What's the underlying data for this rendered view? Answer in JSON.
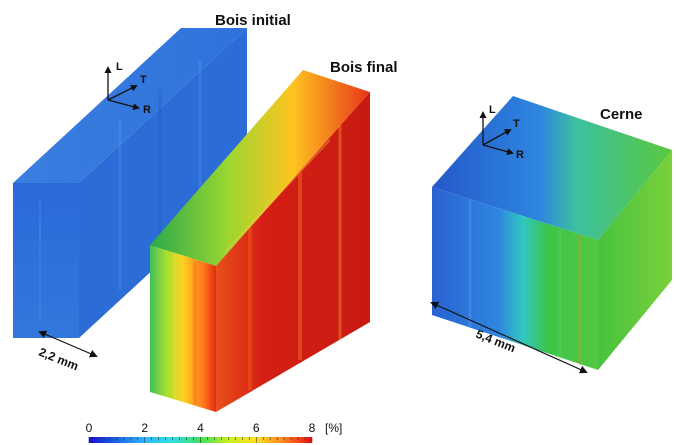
{
  "labels": {
    "block1": "Bois initial",
    "block2": "Bois final",
    "block3": "Cerne"
  },
  "axes": {
    "l": "L",
    "t": "T",
    "r": "R"
  },
  "dimensions": {
    "thickness": "2,2 mm",
    "ring": "5,4 mm"
  },
  "colorbar": {
    "ticks": [
      "0",
      "2",
      "4",
      "6",
      "8"
    ],
    "unit": "[%]",
    "min": 0,
    "max": 8,
    "stops": [
      "#1010d0",
      "#1a64e6",
      "#2fb7ff",
      "#2fe0e0",
      "#40e060",
      "#c8f020",
      "#ffe020",
      "#ff8020",
      "#e01010"
    ]
  },
  "colors": {
    "initial": "#2f6fd6",
    "final_low": "#4cc45a",
    "final_high": "#d9221a",
    "ring_low": "#2a68d2",
    "ring_high": "#36c24a"
  }
}
